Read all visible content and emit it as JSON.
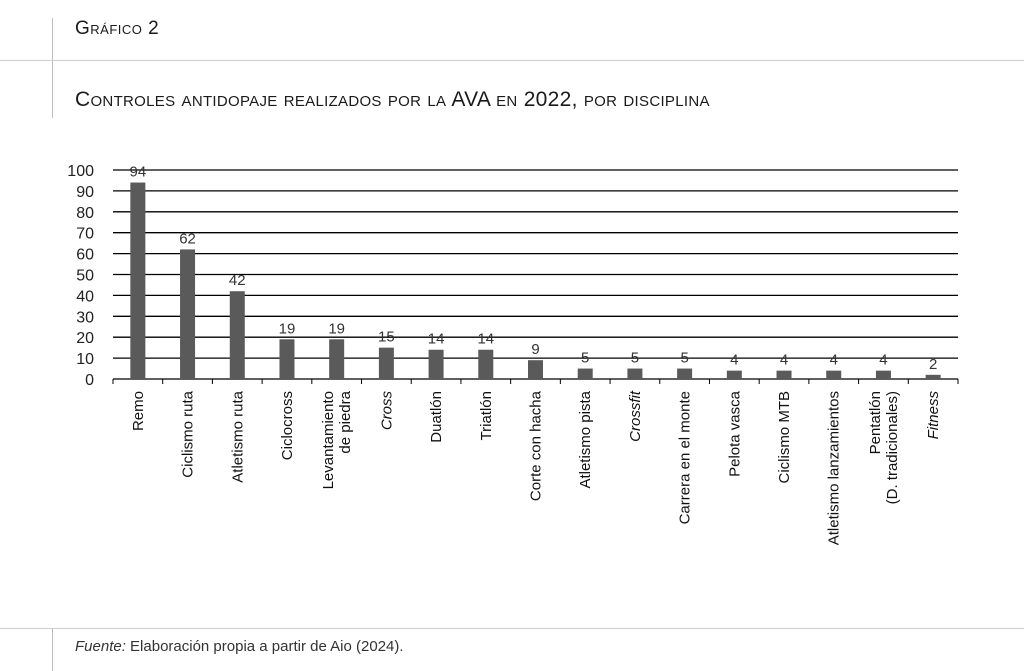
{
  "header": {
    "figure_label": "Gráfico 2",
    "title": "Controles antidopaje realizados por la AVA en 2022, por disciplina"
  },
  "footer": {
    "source_prefix": "Fuente:",
    "source_text": " Elaboración propia a partir de Aio (2024)."
  },
  "colors": {
    "bar": "#5a5a5a",
    "gridline": "#000000"
  },
  "chart_data": {
    "type": "bar",
    "categories": [
      {
        "lines": [
          "Remo"
        ],
        "italic": false
      },
      {
        "lines": [
          "Ciclismo ruta"
        ],
        "italic": false
      },
      {
        "lines": [
          "Atletismo ruta"
        ],
        "italic": false
      },
      {
        "lines": [
          "Ciclocross"
        ],
        "italic": false
      },
      {
        "lines": [
          "Levantamiento",
          "de piedra"
        ],
        "italic": false
      },
      {
        "lines": [
          "Cross"
        ],
        "italic": true
      },
      {
        "lines": [
          "Duatlón"
        ],
        "italic": false
      },
      {
        "lines": [
          "Triatlón"
        ],
        "italic": false
      },
      {
        "lines": [
          "Corte con hacha"
        ],
        "italic": false
      },
      {
        "lines": [
          "Atletismo pista"
        ],
        "italic": false
      },
      {
        "lines": [
          "Crossfit"
        ],
        "italic": true
      },
      {
        "lines": [
          "Carrera en el monte"
        ],
        "italic": false
      },
      {
        "lines": [
          "Pelota vasca"
        ],
        "italic": false
      },
      {
        "lines": [
          "Ciclismo MTB"
        ],
        "italic": false
      },
      {
        "lines": [
          "Atletismo lanzamientos"
        ],
        "italic": false
      },
      {
        "lines": [
          "Pentatlón",
          "(D. tradicionales)"
        ],
        "italic": false
      },
      {
        "lines": [
          "Fitness"
        ],
        "italic": true
      }
    ],
    "values": [
      94,
      62,
      42,
      19,
      19,
      15,
      14,
      14,
      9,
      5,
      5,
      5,
      4,
      4,
      4,
      4,
      2
    ],
    "yticks": [
      0,
      10,
      20,
      30,
      40,
      50,
      60,
      70,
      80,
      90,
      100
    ],
    "ylim": [
      0,
      100
    ],
    "grid": true,
    "data_labels": true
  }
}
